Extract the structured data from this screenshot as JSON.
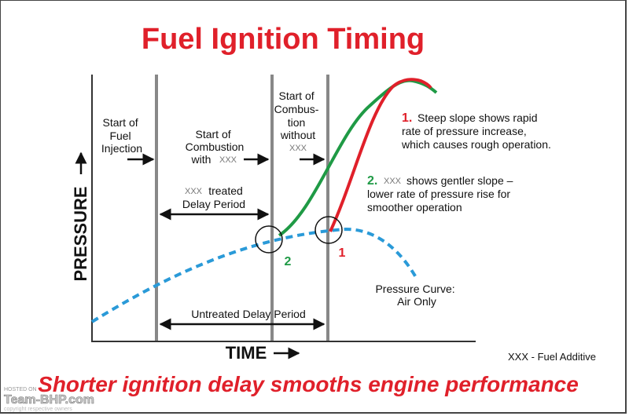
{
  "title": "Fuel Ignition Timing",
  "y_axis_label": "PRESSURE",
  "x_axis_label": "TIME",
  "phases": {
    "fuel_injection": [
      "Start of",
      "Fuel",
      "Injection"
    ],
    "combustion_with": [
      "Start of",
      "Combustion",
      "with",
      "XXX"
    ],
    "combustion_without": [
      "Start of",
      "Combus-",
      "tion",
      "without",
      "XXX"
    ]
  },
  "delays": {
    "treated": [
      "XXX",
      "treated",
      "Delay Period"
    ],
    "untreated": "Untreated Delay  Period"
  },
  "notes": [
    {
      "number": "1.",
      "lines": [
        "Steep slope shows rapid",
        "rate of pressure increase,",
        "which causes rough operation."
      ]
    },
    {
      "number": "2.",
      "lines": [
        "XXX",
        "shows gentler slope –",
        "lower rate of pressure rise for",
        "smoother operation"
      ]
    }
  ],
  "curve_label": [
    "Pressure Curve:",
    "Air Only"
  ],
  "markers": [
    "2",
    "1"
  ],
  "legend": "XXX - Fuel Additive",
  "footer": "Shorter ignition delay smooths engine performance",
  "watermark": [
    "HOSTED ON",
    "Team-BHP.com",
    "copyright respective owners"
  ]
}
